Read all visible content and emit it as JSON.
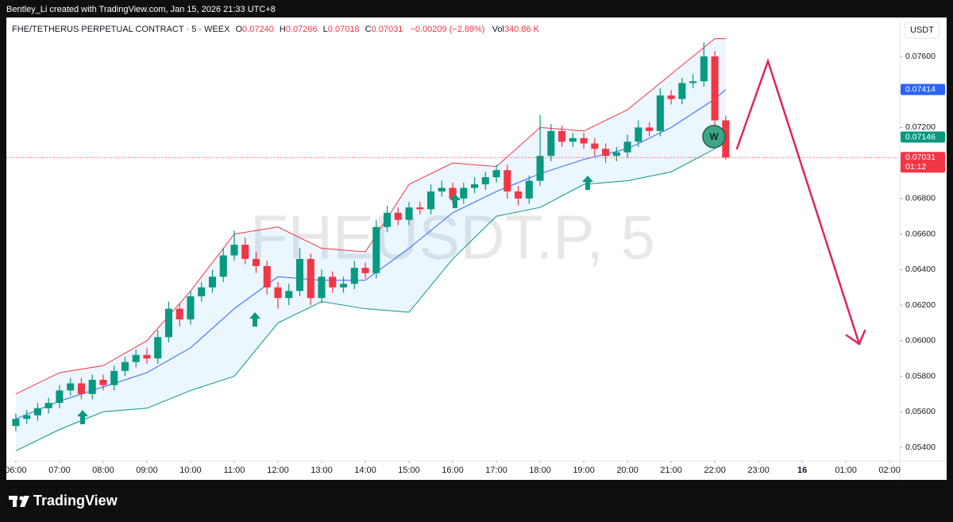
{
  "chart_data": {
    "type": "candlestick",
    "attribution": "Bentley_Li created with TradingView.com, Jan 15, 2026 21:33 UTC+8",
    "title": "FHE/TETHERUS PERPETUAL CONTRACT · 5 · WEEX",
    "legend": [
      {
        "key": "O",
        "value": "0.07240"
      },
      {
        "key": "H",
        "value": "0.07266"
      },
      {
        "key": "L",
        "value": "0.07018"
      },
      {
        "key": "C",
        "value": "0.07031"
      }
    ],
    "change": "−0.00209 (−2.89%)",
    "volume": {
      "key": "Vol",
      "value": "340.86 K"
    },
    "watermark": "FHEUSDT.P, 5",
    "currency": "USDT",
    "annotation": "W",
    "footer": "TradingView",
    "up_color": "#089981",
    "down_color": "#f23645",
    "x": [
      0,
      15,
      30,
      45,
      60,
      75,
      90,
      105,
      120,
      135,
      150,
      165,
      180,
      195,
      210,
      225,
      240,
      255,
      270,
      285,
      300,
      315,
      330,
      345,
      360,
      375,
      390,
      405,
      420,
      435,
      450,
      465,
      480,
      495,
      510,
      525,
      540,
      555,
      570,
      585,
      600,
      615,
      630,
      645,
      660,
      675,
      690,
      705,
      720,
      735,
      750,
      765,
      780,
      795,
      810,
      825,
      840,
      855,
      870,
      885,
      900,
      915,
      930,
      945,
      960,
      975
    ],
    "open": [
      0.0552,
      0.0556,
      0.0558,
      0.0562,
      0.0565,
      0.0572,
      0.0576,
      0.057,
      0.0578,
      0.0575,
      0.0583,
      0.0588,
      0.0592,
      0.059,
      0.0602,
      0.0618,
      0.0612,
      0.0625,
      0.063,
      0.0636,
      0.0648,
      0.0654,
      0.0646,
      0.0642,
      0.063,
      0.0624,
      0.0628,
      0.0646,
      0.0624,
      0.0636,
      0.063,
      0.0632,
      0.0641,
      0.0638,
      0.0664,
      0.0672,
      0.0668,
      0.0675,
      0.0674,
      0.0684,
      0.0686,
      0.068,
      0.0686,
      0.0688,
      0.0692,
      0.0696,
      0.0684,
      0.068,
      0.069,
      0.0704,
      0.0718,
      0.0712,
      0.0714,
      0.0711,
      0.0708,
      0.0704,
      0.0706,
      0.0712,
      0.072,
      0.0718,
      0.0738,
      0.0736,
      0.0745,
      0.0746,
      0.076,
      0.0724
    ],
    "high": [
      0.0559,
      0.0561,
      0.0565,
      0.0568,
      0.0575,
      0.0579,
      0.0579,
      0.0581,
      0.0581,
      0.0586,
      0.0591,
      0.0595,
      0.0596,
      0.0606,
      0.0622,
      0.0621,
      0.0628,
      0.0633,
      0.064,
      0.0652,
      0.0662,
      0.0658,
      0.065,
      0.0645,
      0.0633,
      0.0632,
      0.0652,
      0.0649,
      0.064,
      0.0639,
      0.0636,
      0.0645,
      0.0644,
      0.0668,
      0.0676,
      0.0675,
      0.0678,
      0.0678,
      0.0688,
      0.069,
      0.0689,
      0.0689,
      0.0692,
      0.0695,
      0.0699,
      0.0699,
      0.0687,
      0.0693,
      0.0727,
      0.0722,
      0.0721,
      0.0717,
      0.0717,
      0.0714,
      0.0711,
      0.0709,
      0.0716,
      0.0724,
      0.0723,
      0.0742,
      0.0741,
      0.0748,
      0.075,
      0.0768,
      0.0763,
      0.07266
    ],
    "low": [
      0.0549,
      0.0553,
      0.0555,
      0.0559,
      0.0562,
      0.0569,
      0.0567,
      0.0567,
      0.0572,
      0.0572,
      0.058,
      0.0585,
      0.0587,
      0.0587,
      0.0599,
      0.0608,
      0.0609,
      0.0622,
      0.0627,
      0.0633,
      0.0645,
      0.0643,
      0.0638,
      0.0626,
      0.0618,
      0.062,
      0.0625,
      0.062,
      0.0621,
      0.0627,
      0.0627,
      0.0629,
      0.0635,
      0.0635,
      0.0661,
      0.0665,
      0.0665,
      0.0671,
      0.0671,
      0.0681,
      0.0677,
      0.0677,
      0.0683,
      0.0685,
      0.0689,
      0.068,
      0.0676,
      0.0677,
      0.0687,
      0.0701,
      0.0709,
      0.0709,
      0.0708,
      0.0704,
      0.07,
      0.0701,
      0.0703,
      0.0709,
      0.0715,
      0.0715,
      0.0733,
      0.0733,
      0.0742,
      0.0743,
      0.072,
      0.07018
    ],
    "close": [
      0.0556,
      0.0558,
      0.0562,
      0.0565,
      0.0572,
      0.0576,
      0.057,
      0.0578,
      0.0575,
      0.0583,
      0.0588,
      0.0592,
      0.059,
      0.0602,
      0.0618,
      0.0612,
      0.0625,
      0.063,
      0.0636,
      0.0648,
      0.0654,
      0.0646,
      0.0642,
      0.063,
      0.0624,
      0.0628,
      0.0646,
      0.0624,
      0.0636,
      0.063,
      0.0632,
      0.0641,
      0.0638,
      0.0664,
      0.0672,
      0.0668,
      0.0675,
      0.0674,
      0.0684,
      0.0686,
      0.068,
      0.0686,
      0.0688,
      0.0692,
      0.0696,
      0.0684,
      0.068,
      0.069,
      0.0704,
      0.0718,
      0.0712,
      0.0714,
      0.0711,
      0.0708,
      0.0704,
      0.0706,
      0.0712,
      0.072,
      0.0718,
      0.0738,
      0.0736,
      0.0745,
      0.0746,
      0.076,
      0.0724,
      0.07031
    ],
    "bands": {
      "x": [
        0,
        60,
        120,
        180,
        240,
        300,
        360,
        420,
        480,
        540,
        600,
        660,
        720,
        780,
        840,
        900,
        960,
        975
      ],
      "upper": [
        0.057,
        0.0582,
        0.0586,
        0.06,
        0.0628,
        0.066,
        0.0664,
        0.0652,
        0.065,
        0.0688,
        0.07,
        0.0698,
        0.072,
        0.0718,
        0.073,
        0.075,
        0.077,
        0.077
      ],
      "middle": [
        0.0556,
        0.0566,
        0.0574,
        0.0582,
        0.0596,
        0.0618,
        0.0636,
        0.0634,
        0.0634,
        0.0652,
        0.0672,
        0.0684,
        0.0694,
        0.0702,
        0.0708,
        0.072,
        0.0736,
        0.07414
      ],
      "lower": [
        0.0538,
        0.055,
        0.056,
        0.0562,
        0.0572,
        0.058,
        0.061,
        0.0622,
        0.0618,
        0.0616,
        0.0646,
        0.067,
        0.0675,
        0.0688,
        0.069,
        0.0695,
        0.0708,
        0.07146
      ],
      "upper_color": "#f23645",
      "middle_color": "#2962ff",
      "lower_color": "#089981"
    },
    "price_tags": [
      {
        "value": 0.07414,
        "label": "0.07414",
        "color": "#2962ff"
      },
      {
        "value": 0.07146,
        "label": "0.07146",
        "color": "#089981"
      },
      {
        "value": 0.07031,
        "label": "0.07031",
        "color": "#f23645",
        "countdown": "01:12"
      }
    ],
    "xlim": [
      -13,
      1214
    ],
    "ylim": [
      0.05324,
      0.07819
    ],
    "xticks": [
      {
        "value": 0,
        "label": "06:00"
      },
      {
        "value": 60,
        "label": "07:00"
      },
      {
        "value": 120,
        "label": "08:00"
      },
      {
        "value": 180,
        "label": "09:00"
      },
      {
        "value": 240,
        "label": "10:00"
      },
      {
        "value": 300,
        "label": "11:00"
      },
      {
        "value": 360,
        "label": "12:00"
      },
      {
        "value": 420,
        "label": "13:00"
      },
      {
        "value": 480,
        "label": "14:00"
      },
      {
        "value": 540,
        "label": "15:00"
      },
      {
        "value": 600,
        "label": "16:00"
      },
      {
        "value": 660,
        "label": "17:00"
      },
      {
        "value": 720,
        "label": "18:00"
      },
      {
        "value": 780,
        "label": "19:00"
      },
      {
        "value": 840,
        "label": "20:00"
      },
      {
        "value": 900,
        "label": "21:00"
      },
      {
        "value": 960,
        "label": "22:00"
      },
      {
        "value": 1020,
        "label": "23:00"
      },
      {
        "value": 1080,
        "label": "16"
      },
      {
        "value": 1140,
        "label": "01:00"
      },
      {
        "value": 1200,
        "label": "02:00"
      }
    ],
    "yticks": [
      {
        "value": 0.054,
        "label": "0.05400"
      },
      {
        "value": 0.056,
        "label": "0.05600"
      },
      {
        "value": 0.058,
        "label": "0.05800"
      },
      {
        "value": 0.06,
        "label": "0.06000"
      },
      {
        "value": 0.062,
        "label": "0.06200"
      },
      {
        "value": 0.064,
        "label": "0.06400"
      },
      {
        "value": 0.066,
        "label": "0.06600"
      },
      {
        "value": 0.068,
        "label": "0.06800"
      },
      {
        "value": 0.07,
        "label": "0.07000"
      },
      {
        "value": 0.072,
        "label": "0.07200"
      },
      {
        "value": 0.074,
        "label": "0.07400"
      },
      {
        "value": 0.076,
        "label": "0.07600"
      }
    ],
    "grid": false
  }
}
